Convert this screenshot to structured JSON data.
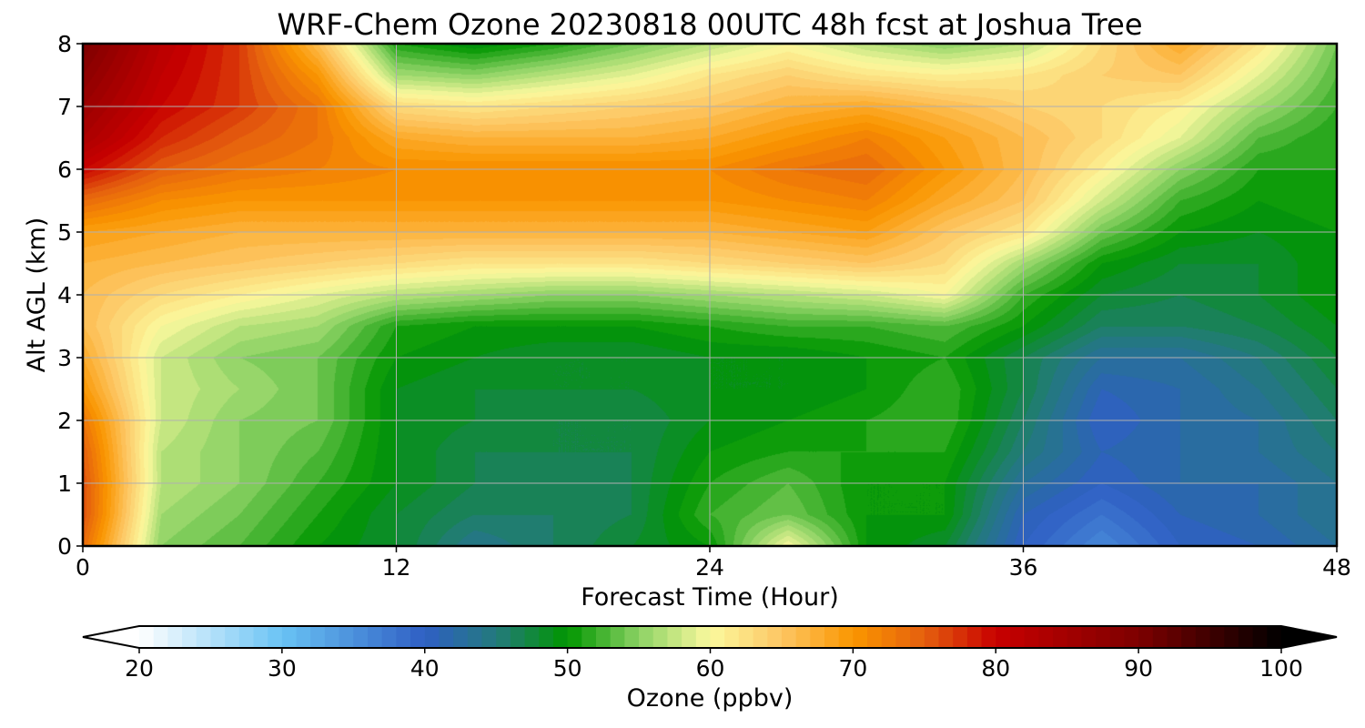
{
  "chart_data": {
    "type": "heatmap",
    "title": "WRF-Chem Ozone  20230818 00UTC 48h fcst at Joshua Tree",
    "xlabel": "Forecast Time (Hour)",
    "ylabel": "Alt AGL (km)",
    "xlim": [
      0,
      48
    ],
    "ylim": [
      0,
      8
    ],
    "x_ticks": [
      0,
      12,
      24,
      36,
      48
    ],
    "y_ticks": [
      0,
      1,
      2,
      3,
      4,
      5,
      6,
      7,
      8
    ],
    "grid": true,
    "x": [
      0,
      3,
      6,
      9,
      12,
      15,
      18,
      21,
      24,
      27,
      30,
      33,
      36,
      39,
      42,
      45,
      48
    ],
    "y": [
      0,
      0.5,
      1,
      1.5,
      2,
      2.5,
      3,
      3.5,
      4,
      4.5,
      5,
      5.5,
      6,
      6.5,
      7,
      7.5,
      8
    ],
    "z": [
      [
        74,
        55,
        53,
        50,
        48,
        44,
        46,
        48,
        50,
        60,
        50,
        48,
        40,
        36,
        40,
        41,
        43
      ],
      [
        76,
        56,
        54,
        51,
        48,
        46,
        46,
        47,
        52,
        54,
        50,
        50,
        41,
        38,
        41,
        42,
        44
      ],
      [
        76,
        57,
        55,
        52,
        49,
        47,
        46,
        47,
        51,
        53,
        50,
        50,
        43,
        40,
        42,
        42,
        44
      ],
      [
        75,
        57,
        55,
        53,
        49,
        47,
        47,
        47,
        50,
        51,
        51,
        51,
        45,
        41,
        42,
        43,
        45
      ],
      [
        73,
        58,
        55,
        54,
        49,
        48,
        47,
        47,
        49,
        50,
        51,
        52,
        46,
        40,
        42,
        43,
        46
      ],
      [
        70,
        58,
        56,
        54,
        49,
        48,
        48,
        48,
        49,
        49,
        50,
        52,
        47,
        41,
        42,
        44,
        47
      ],
      [
        68,
        58,
        55,
        54,
        50,
        49,
        48,
        48,
        49,
        49,
        50,
        51,
        47,
        43,
        43,
        45,
        48
      ],
      [
        66,
        60,
        57,
        56,
        51,
        50,
        50,
        50,
        51,
        52,
        52,
        53,
        50,
        46,
        46,
        47,
        49
      ],
      [
        66,
        63,
        61,
        59,
        57,
        56,
        55,
        55,
        56,
        57,
        58,
        60,
        52,
        48,
        47,
        48,
        50
      ],
      [
        67,
        66,
        65,
        64,
        63,
        62,
        62,
        62,
        63,
        64,
        65,
        63,
        56,
        50,
        48,
        48,
        50
      ],
      [
        69,
        68,
        67,
        67,
        67,
        67,
        67,
        67,
        67,
        68,
        69,
        65,
        62,
        54,
        50,
        49,
        50
      ],
      [
        74,
        71,
        70,
        70,
        70,
        70,
        70,
        70,
        70,
        71,
        72,
        68,
        65,
        58,
        52,
        50,
        51
      ],
      [
        80,
        75,
        73,
        72,
        71,
        71,
        71,
        71,
        71,
        73,
        74,
        70,
        66,
        61,
        55,
        51,
        51
      ],
      [
        84,
        78,
        75,
        73,
        68,
        67,
        67,
        67,
        68,
        70,
        72,
        69,
        66,
        63,
        59,
        53,
        51
      ],
      [
        86,
        80,
        77,
        73,
        63,
        62,
        63,
        64,
        65,
        67,
        68,
        66,
        64,
        63,
        61,
        56,
        52
      ],
      [
        88,
        81,
        77,
        70,
        56,
        55,
        57,
        59,
        62,
        64,
        62,
        61,
        62,
        64,
        65,
        59,
        53
      ],
      [
        90,
        82,
        77,
        66,
        51,
        49,
        51,
        54,
        57,
        60,
        57,
        55,
        57,
        63,
        68,
        62,
        54
      ]
    ],
    "colorbar": {
      "label": "Ozone  (ppbv)",
      "min": 20,
      "max": 100,
      "ticks": [
        20,
        30,
        40,
        50,
        60,
        70,
        80,
        90,
        100
      ],
      "extend": "both",
      "stops": [
        {
          "v": 20,
          "color": "#ffffff"
        },
        {
          "v": 30,
          "color": "#69c3f4"
        },
        {
          "v": 40,
          "color": "#2f5fc4"
        },
        {
          "v": 45,
          "color": "#237a7c"
        },
        {
          "v": 50,
          "color": "#009600"
        },
        {
          "v": 55,
          "color": "#8cd264"
        },
        {
          "v": 60,
          "color": "#fbf99e"
        },
        {
          "v": 65,
          "color": "#fdc663"
        },
        {
          "v": 70,
          "color": "#fa9600"
        },
        {
          "v": 75,
          "color": "#e55f0e"
        },
        {
          "v": 80,
          "color": "#c80000"
        },
        {
          "v": 90,
          "color": "#7d0000"
        },
        {
          "v": 100,
          "color": "#000000"
        }
      ]
    }
  }
}
